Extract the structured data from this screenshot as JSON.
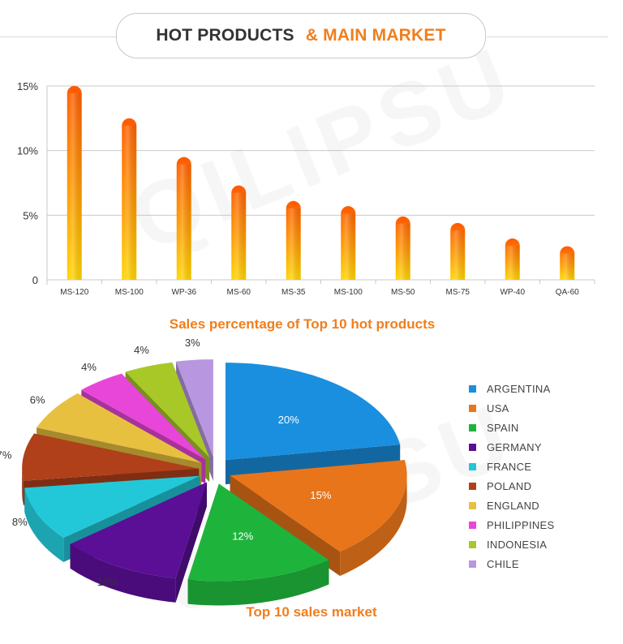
{
  "header": {
    "title_part1": "HOT PRODUCTS",
    "title_part2": "& MAIN MARKET"
  },
  "watermark": "QILIPSU",
  "colors": {
    "accent": "#f07e1e",
    "header_text": "#333333",
    "bar_top": "#ff5a00",
    "bar_bottom": "#ffd400"
  },
  "chart_data": [
    {
      "type": "bar",
      "title": "Sales percentage of Top 10 hot products",
      "categories": [
        "MS-120",
        "MS-100",
        "WP-36",
        "MS-60",
        "MS-35",
        "MS-100",
        "MS-50",
        "MS-75",
        "WP-40",
        "QA-60"
      ],
      "values": [
        15,
        12.5,
        9.5,
        7.3,
        6.1,
        5.7,
        4.9,
        4.4,
        3.2,
        2.6
      ],
      "ylim": [
        0,
        15
      ],
      "yticks": [
        "0",
        "5%",
        "10%",
        "15%"
      ],
      "ytick_values": [
        0,
        5,
        10,
        15
      ],
      "xlabel": "",
      "ylabel": "",
      "grid": true
    },
    {
      "type": "pie",
      "title": "Top 10 sales market",
      "legend_position": "right",
      "categories": [
        "ARGENTINA",
        "USA",
        "SPAIN",
        "GERMANY",
        "FRANCE",
        "POLAND",
        "ENGLAND",
        "PHILIPPINES",
        "INDONESIA",
        "CHILE"
      ],
      "values": [
        20,
        15,
        12,
        10,
        8,
        7,
        6,
        4,
        4,
        3
      ],
      "labels": [
        "20%",
        "15%",
        "12%",
        "10%",
        "8%",
        "7%",
        "6%",
        "4%",
        "4%",
        "3%"
      ],
      "colors": [
        "#1a8fdf",
        "#e8751a",
        "#1eb43c",
        "#5a0f96",
        "#22c8d8",
        "#b0401a",
        "#e8c040",
        "#e846d8",
        "#a8c828",
        "#b896e0"
      ]
    }
  ]
}
